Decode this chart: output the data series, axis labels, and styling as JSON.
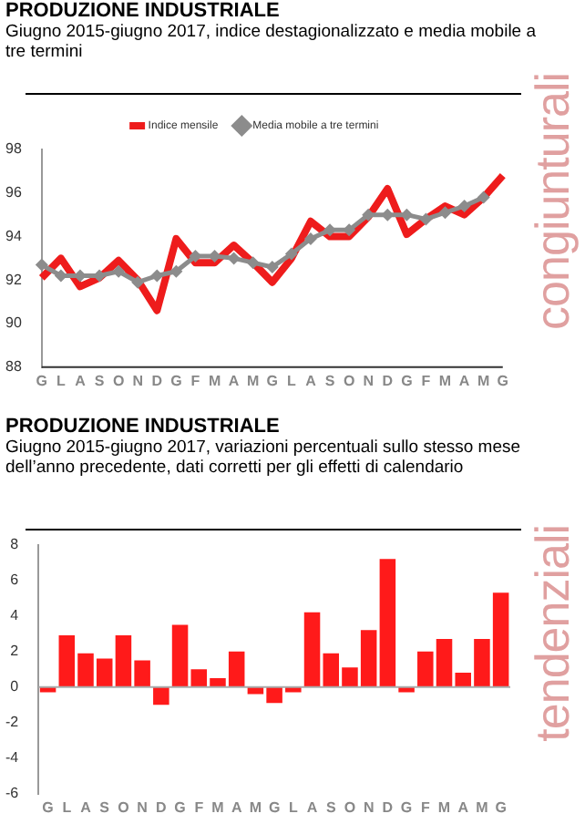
{
  "chart_data": [
    {
      "type": "line",
      "title": "PRODUZIONE INDUSTRIALE",
      "subtitle": "Giugno 2015-giugno 2017, indice destagionalizzato e media mobile a tre termini",
      "categories": [
        "G",
        "L",
        "A",
        "S",
        "O",
        "N",
        "D",
        "G",
        "F",
        "M",
        "A",
        "M",
        "G",
        "L",
        "A",
        "S",
        "O",
        "N",
        "D",
        "G",
        "F",
        "M",
        "A",
        "M",
        "G"
      ],
      "series": [
        {
          "name": "Indice mensile",
          "color": "#ee1c1c",
          "marker": "none",
          "values": [
            92.1,
            93.0,
            91.7,
            92.1,
            92.9,
            92.0,
            90.6,
            93.9,
            92.8,
            92.8,
            93.6,
            92.8,
            91.9,
            93.0,
            94.7,
            94.0,
            94.0,
            94.9,
            96.2,
            94.1,
            94.8,
            95.4,
            95.0,
            95.8,
            96.8
          ]
        },
        {
          "name": "Media mobile a tre termini",
          "color": "#8c8c8c",
          "marker": "diamond",
          "values": [
            92.7,
            92.2,
            92.2,
            92.2,
            92.4,
            91.9,
            92.2,
            92.4,
            93.1,
            93.1,
            93.0,
            92.8,
            92.6,
            93.2,
            93.9,
            94.3,
            94.3,
            95.0,
            95.0,
            95.0,
            94.8,
            95.1,
            95.4,
            95.8,
            null
          ]
        }
      ],
      "ylim": [
        88,
        98
      ],
      "yticks": [
        88,
        90,
        92,
        94,
        96,
        98
      ],
      "legend": "top",
      "annotations": [
        "congiunturali"
      ]
    },
    {
      "type": "bar",
      "title": "PRODUZIONE INDUSTRIALE",
      "subtitle": "Giugno 2015-giugno 2017, variazioni percentuali sullo stesso mese dell’anno precedente, dati corretti per gli effetti di calendario",
      "categories": [
        "G",
        "L",
        "A",
        "S",
        "O",
        "N",
        "D",
        "G",
        "F",
        "M",
        "A",
        "M",
        "G",
        "L",
        "A",
        "S",
        "O",
        "N",
        "D",
        "G",
        "F",
        "M",
        "A",
        "M",
        "G"
      ],
      "values": [
        -0.3,
        2.9,
        1.9,
        1.6,
        2.9,
        1.5,
        -1.0,
        3.5,
        1.0,
        0.5,
        2.0,
        -0.4,
        -0.9,
        -0.3,
        4.2,
        1.9,
        1.1,
        3.2,
        7.2,
        -0.3,
        2.0,
        2.7,
        0.8,
        2.7,
        5.3
      ],
      "color": "#ff1a1a",
      "ylim": [
        -6,
        8
      ],
      "yticks": [
        -6,
        -4,
        -2,
        0,
        2,
        4,
        6,
        8
      ],
      "legend": false,
      "annotations": [
        "tendenziali"
      ]
    }
  ]
}
